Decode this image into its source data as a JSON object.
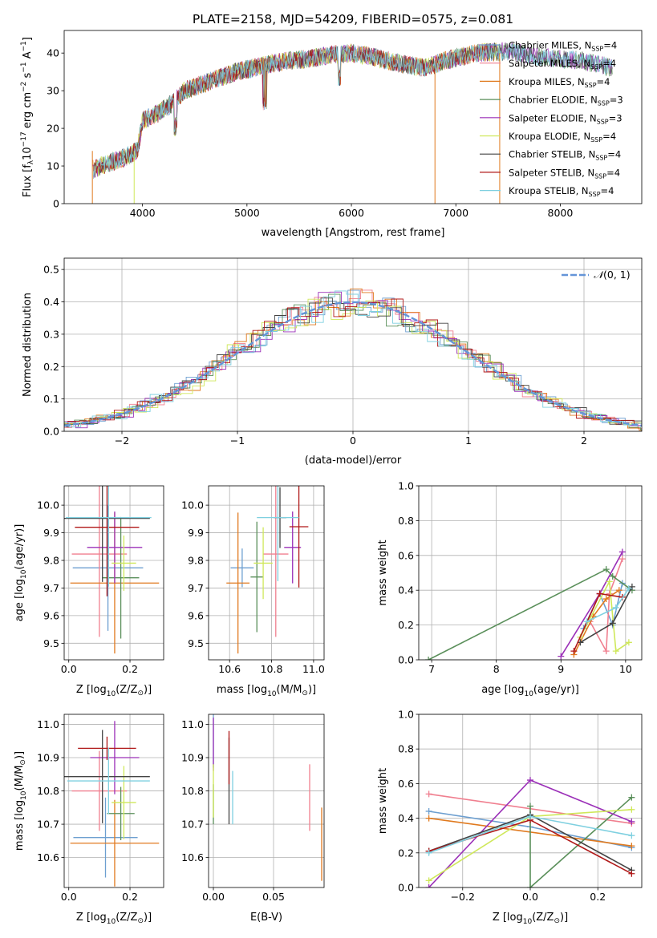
{
  "figure_title": "PLATE=2158, MJD=54209, FIBERID=0575, z=0.081",
  "model_colors": [
    "#6d9fd0",
    "#f07f8f",
    "#e07a1f",
    "#5a8f5a",
    "#9b30b8",
    "#cfe85a",
    "#444444",
    "#b01818",
    "#7fd0e0"
  ],
  "legend_base": [
    "Chabrier MILES, N",
    "Salpeter MILES, N",
    "Kroupa MILES, N",
    "Chabrier ELODIE, N",
    "Salpeter ELODIE, N",
    "Kroupa ELODIE, N",
    "Chabrier STELIB, N",
    "Salpeter STELIB, N",
    "Kroupa STELIB, N"
  ],
  "legend_nssp": [
    "4",
    "4",
    "4",
    "3",
    "3",
    "4",
    "4",
    "4",
    "4"
  ],
  "legend_sub": "SSP",
  "normal_label": "(0, 1)",
  "normal_symbol": "𝒩",
  "chart_data": [
    {
      "id": "spectrum",
      "type": "line",
      "xlabel": "wavelength [Angstrom, rest frame]",
      "ylabel": "Flux [f",
      "ylabel_lambda": "λ",
      "ylabel_rest": "10",
      "ylabel_exp1": "−17",
      "ylabel_mid": " erg cm",
      "ylabel_exp2": "−2",
      "ylabel_s": " s",
      "ylabel_exp3": "−1",
      "ylabel_end": " A",
      "ylabel_exp4": "−1",
      "ylabel_close": "]",
      "xlim": [
        3250,
        8780
      ],
      "ylim": [
        0,
        46
      ],
      "xticks": [
        4000,
        5000,
        6000,
        7000,
        8000
      ],
      "yticks": [
        0,
        10,
        20,
        30,
        40
      ],
      "continuum": [
        [
          3520,
          9
        ],
        [
          3700,
          11
        ],
        [
          3850,
          12.5
        ],
        [
          3950,
          14
        ],
        [
          4000,
          22
        ],
        [
          4150,
          24
        ],
        [
          4300,
          27
        ],
        [
          4400,
          30
        ],
        [
          4600,
          32
        ],
        [
          4900,
          35
        ],
        [
          5200,
          37
        ],
        [
          5400,
          38
        ],
        [
          5600,
          38.5
        ],
        [
          5800,
          39.5
        ],
        [
          6000,
          40
        ],
        [
          6200,
          39
        ],
        [
          6500,
          37
        ],
        [
          6700,
          36
        ],
        [
          6900,
          38
        ],
        [
          7200,
          40
        ],
        [
          7500,
          40.5
        ],
        [
          7800,
          39
        ],
        [
          8200,
          38
        ],
        [
          8500,
          36
        ]
      ],
      "dropouts": [
        [
          3520,
          0
        ],
        [
          3920,
          0
        ],
        [
          6800,
          0
        ],
        [
          7420,
          0
        ]
      ]
    },
    {
      "id": "residuals",
      "type": "histogram",
      "xlabel": "(data-model)/error",
      "ylabel": "Normed distribution",
      "xlim": [
        -2.5,
        2.5
      ],
      "ylim": [
        0,
        0.535
      ],
      "xticks": [
        -2,
        -1,
        0,
        1,
        2
      ],
      "yticks": [
        0.0,
        0.1,
        0.2,
        0.3,
        0.4,
        0.5
      ],
      "series": "one step histogram per model, approximating a standard normal distribution",
      "reference": "N(0,1)"
    },
    {
      "id": "age_vs_Z",
      "type": "errorbar",
      "xlabel": "Z [log",
      "xlabel_sub": "10",
      "xlabel_rest": "(Z/Z",
      "xlabel_odot": "⊙",
      "xlabel_close": ")]",
      "ylabel": "age  [log",
      "ylabel_sub": "10",
      "ylabel_rest": "(age/yr)]",
      "xlim": [
        -0.015,
        0.31
      ],
      "ylim": [
        9.44,
        10.07
      ],
      "xticks": [
        0.0,
        0.2
      ],
      "yticks": [
        9.5,
        9.6,
        9.7,
        9.8,
        9.9,
        10.0
      ],
      "points": [
        {
          "x": 0.128,
          "xe": 0.115,
          "y": 9.773,
          "ye": 0.228
        },
        {
          "x": 0.1,
          "xe": 0.09,
          "y": 9.823,
          "ye": 0.3
        },
        {
          "x": 0.15,
          "xe": 0.145,
          "y": 9.718,
          "ye": 0.255
        },
        {
          "x": 0.17,
          "xe": 0.06,
          "y": 9.737,
          "ye": 0.22
        },
        {
          "x": 0.15,
          "xe": 0.09,
          "y": 9.847,
          "ye": 0.13
        },
        {
          "x": 0.18,
          "xe": 0.04,
          "y": 9.79,
          "ye": 0.1
        },
        {
          "x": 0.11,
          "xe": 0.155,
          "y": 9.952,
          "ye": 0.23
        },
        {
          "x": 0.125,
          "xe": 0.105,
          "y": 9.92,
          "ye": 0.25
        },
        {
          "x": 0.13,
          "xe": 0.14,
          "y": 9.955,
          "ye": 0.25
        }
      ]
    },
    {
      "id": "age_vs_mass",
      "type": "errorbar",
      "xlabel": "mass [log",
      "xlabel_sub": "10",
      "xlabel_rest": "(M/M",
      "xlabel_odot": "⊙",
      "xlabel_close": ")]",
      "xlim": [
        10.5,
        11.05
      ],
      "ylim": [
        9.44,
        10.07
      ],
      "xticks": [
        10.6,
        10.8,
        11.0
      ],
      "yticks": [
        9.5,
        9.6,
        9.7,
        9.8,
        9.9,
        10.0
      ],
      "points": [
        {
          "x": 10.66,
          "xe": 0.055,
          "y": 9.773,
          "ye": 0.07
        },
        {
          "x": 10.82,
          "xe": 0.06,
          "y": 9.823,
          "ye": 0.3
        },
        {
          "x": 10.64,
          "xe": 0.055,
          "y": 9.718,
          "ye": 0.255
        },
        {
          "x": 10.73,
          "xe": 0.03,
          "y": 9.74,
          "ye": 0.2
        },
        {
          "x": 10.9,
          "xe": 0.04,
          "y": 9.847,
          "ye": 0.13
        },
        {
          "x": 10.76,
          "xe": 0.045,
          "y": 9.79,
          "ye": 0.13
        },
        {
          "x": 10.84,
          "xe": 0.03,
          "y": 9.955,
          "ye": 0.11
        },
        {
          "x": 10.93,
          "xe": 0.045,
          "y": 9.922,
          "ye": 0.22
        },
        {
          "x": 10.83,
          "xe": 0.1,
          "y": 9.955,
          "ye": 0.23
        }
      ]
    },
    {
      "id": "massweight_vs_age",
      "type": "line",
      "xlabel": "age  [log",
      "xlabel_sub": "10",
      "xlabel_rest": "(age/yr)]",
      "ylabel": "mass weight",
      "xlim": [
        6.8,
        10.25
      ],
      "ylim": [
        0,
        1
      ],
      "xticks": [
        7,
        8,
        9,
        10
      ],
      "yticks": [
        0.0,
        0.2,
        0.4,
        0.6,
        0.8,
        1.0
      ],
      "series": [
        {
          "pts": [
            [
              9.35,
              0.18
            ],
            [
              9.6,
              0.38
            ],
            [
              9.8,
              0.2
            ],
            [
              9.95,
              0.44
            ]
          ]
        },
        {
          "pts": [
            [
              9.45,
              0.22
            ],
            [
              9.7,
              0.05
            ],
            [
              9.75,
              0.38
            ],
            [
              9.95,
              0.58
            ]
          ]
        },
        {
          "pts": [
            [
              9.2,
              0.03
            ],
            [
              9.5,
              0.25
            ],
            [
              9.7,
              0.35
            ],
            [
              9.9,
              0.4
            ]
          ]
        },
        {
          "pts": [
            [
              6.95,
              0.0
            ],
            [
              9.7,
              0.52
            ],
            [
              9.8,
              0.48
            ],
            [
              10.1,
              0.4
            ]
          ]
        },
        {
          "pts": [
            [
              9.0,
              0.02
            ],
            [
              9.6,
              0.38
            ],
            [
              9.95,
              0.62
            ]
          ]
        },
        {
          "pts": [
            [
              9.3,
              0.13
            ],
            [
              9.75,
              0.45
            ],
            [
              9.85,
              0.05
            ],
            [
              10.05,
              0.1
            ]
          ]
        },
        {
          "pts": [
            [
              9.3,
              0.1
            ],
            [
              9.8,
              0.21
            ],
            [
              10.1,
              0.42
            ]
          ]
        },
        {
          "pts": [
            [
              9.2,
              0.05
            ],
            [
              9.6,
              0.38
            ],
            [
              9.95,
              0.36
            ]
          ]
        },
        {
          "pts": [
            [
              9.4,
              0.22
            ],
            [
              9.85,
              0.3
            ],
            [
              10.05,
              0.41
            ]
          ]
        }
      ]
    },
    {
      "id": "mass_vs_Z",
      "type": "errorbar",
      "xlabel": "Z [log",
      "xlabel_sub": "10",
      "xlabel_rest": "(Z/Z",
      "xlabel_odot": "⊙",
      "xlabel_close": ")]",
      "ylabel": "mass [log",
      "ylabel_sub": "10",
      "ylabel_rest": "(M/M",
      "ylabel_odot": "⊙",
      "ylabel_close": ")]",
      "xlim": [
        -0.015,
        0.31
      ],
      "ylim": [
        10.51,
        11.03
      ],
      "xticks": [
        0.0,
        0.2
      ],
      "yticks": [
        10.6,
        10.7,
        10.8,
        10.9,
        11.0
      ],
      "points": [
        {
          "x": 0.12,
          "xe": 0.105,
          "y": 10.66,
          "ye": 0.12
        },
        {
          "x": 0.1,
          "xe": 0.09,
          "y": 10.8,
          "ye": 0.12
        },
        {
          "x": 0.15,
          "xe": 0.145,
          "y": 10.643,
          "ye": 0.13
        },
        {
          "x": 0.17,
          "xe": 0.045,
          "y": 10.732,
          "ye": 0.08
        },
        {
          "x": 0.15,
          "xe": 0.08,
          "y": 10.9,
          "ye": 0.11
        },
        {
          "x": 0.18,
          "xe": 0.04,
          "y": 10.765,
          "ye": 0.11
        },
        {
          "x": 0.11,
          "xe": 0.155,
          "y": 10.843,
          "ye": 0.14
        },
        {
          "x": 0.125,
          "xe": 0.095,
          "y": 10.928,
          "ye": 0.035
        },
        {
          "x": 0.13,
          "xe": 0.135,
          "y": 10.83,
          "ye": 0.1
        }
      ]
    },
    {
      "id": "mass_vs_EBV",
      "type": "errorbar",
      "xlabel": "E(B-V)",
      "xlim": [
        -0.004,
        0.092
      ],
      "ylim": [
        10.51,
        11.03
      ],
      "xticks": [
        0.0,
        0.05
      ],
      "yticks": [
        10.6,
        10.7,
        10.8,
        10.9,
        11.0
      ],
      "points": [
        {
          "x": 0.0,
          "xe": 0,
          "y": 10.96,
          "ye": 0.09
        },
        {
          "x": 0.08,
          "xe": 0,
          "y": 10.78,
          "ye": 0.1
        },
        {
          "x": 0.09,
          "xe": 0,
          "y": 10.64,
          "ye": 0.11
        },
        {
          "x": 0.0,
          "xe": 0,
          "y": 10.76,
          "ye": 0.06
        },
        {
          "x": 0.0,
          "xe": 0,
          "y": 10.94,
          "ye": 0.08
        },
        {
          "x": 0.0,
          "xe": 0,
          "y": 10.8,
          "ye": 0.08
        },
        {
          "x": 0.013,
          "xe": 0,
          "y": 10.83,
          "ye": 0.13
        },
        {
          "x": 0.013,
          "xe": 0,
          "y": 10.9,
          "ye": 0.08
        },
        {
          "x": 0.016,
          "xe": 0,
          "y": 10.78,
          "ye": 0.08
        }
      ]
    },
    {
      "id": "massweight_vs_Z",
      "type": "line",
      "xlabel": "Z [log",
      "xlabel_sub": "10",
      "xlabel_rest": "(Z/Z",
      "xlabel_odot": "⊙",
      "xlabel_close": ")]",
      "ylabel": "mass weight",
      "xlim": [
        -0.33,
        0.33
      ],
      "ylim": [
        0,
        1
      ],
      "xticks": [
        -0.2,
        0.0,
        0.2
      ],
      "xticklabels": [
        "−0.2",
        "0.0",
        "0.2"
      ],
      "yticks": [
        0.0,
        0.2,
        0.4,
        0.6,
        0.8,
        1.0
      ],
      "series": [
        {
          "pts": [
            [
              -0.3,
              0.44
            ],
            [
              0.0,
              0.35
            ],
            [
              0.3,
              0.23
            ]
          ]
        },
        {
          "pts": [
            [
              -0.3,
              0.54
            ],
            [
              0.3,
              0.37
            ]
          ]
        },
        {
          "pts": [
            [
              -0.3,
              0.4
            ],
            [
              0.3,
              0.24
            ]
          ]
        },
        {
          "pts": [
            [
              0.0,
              0.47
            ],
            [
              0.0,
              0.0
            ],
            [
              0.3,
              0.52
            ]
          ]
        },
        {
          "pts": [
            [
              -0.3,
              0.0
            ],
            [
              0.0,
              0.62
            ],
            [
              0.3,
              0.38
            ]
          ]
        },
        {
          "pts": [
            [
              -0.3,
              0.04
            ],
            [
              0.0,
              0.41
            ],
            [
              0.3,
              0.45
            ]
          ]
        },
        {
          "pts": [
            [
              -0.3,
              0.21
            ],
            [
              0.0,
              0.42
            ],
            [
              0.3,
              0.1
            ]
          ]
        },
        {
          "pts": [
            [
              -0.3,
              0.21
            ],
            [
              0.0,
              0.39
            ],
            [
              0.3,
              0.08
            ]
          ]
        },
        {
          "pts": [
            [
              -0.3,
              0.2
            ],
            [
              0.0,
              0.41
            ],
            [
              0.3,
              0.3
            ]
          ]
        }
      ]
    }
  ]
}
